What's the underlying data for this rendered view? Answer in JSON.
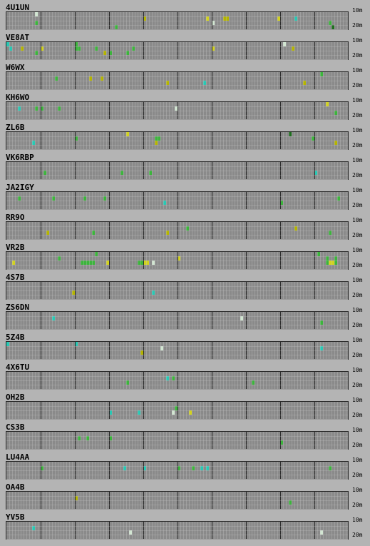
{
  "bands": {
    "top": "10m",
    "bottom": "20m"
  },
  "colors": {
    "background": "#b4b4b4",
    "cell_empty": "#8a8a8a",
    "grid_line": "#c8c8c8",
    "hour_divider": "#2a2a2a",
    "signal_colors": {
      "G": "#3cb43c",
      "D": "#1e6e1e",
      "Y": "#b4b400",
      "L": "#d2d21e",
      "C": "#28c8b4",
      "W": "#d2e6d2",
      "V": "#3cdc3c"
    }
  },
  "beacons": [
    {
      "name": "4U1UN",
      "rows": [
        "..........W.................................................................................................................",
        "................................................Y.....................L.....YY.................L.....C...................",
        "..........G.............................................................W........................................G......",
        "......................................G...........................................................................D......"
      ]
    },
    {
      "name": "VE8AT",
      "rows": [
        "C.......................G........................................................................W........................",
        ".C...Y......L...........GG.....G............G...........................L...........................Y.....................",
        "..........G.......................Y.G.....G................................................................................",
        "........................................................................................................................"
      ]
    },
    {
      "name": "W6WX",
      "rows": [
        "..............................................................................................................G...........",
        ".................G...........Y...Y.........................................................................................",
        "........................................................Y............C..................................Y................",
        "........................................................................................................................"
      ]
    },
    {
      "name": "KH6WO",
      "rows": [
        "................................................................................................................L.........",
        "....C.....G.G.....G........................................W...........................................................",
        "...................................................................................................................G......",
        "........................................................................................................................"
      ]
    },
    {
      "name": "ZL6B",
      "rows": [
        "..........................................L........................................................D....................",
        "........................G...........................GG.....................................................G.............",
        ".........C..........................................Y..............................................................Y.....",
        "........................................................................................................................"
      ]
    },
    {
      "name": "VK6RBP",
      "rows": [
        "........................................................................................................................",
        "........................................................................................................................",
        ".............G..........................G.........G.........................................................C..........",
        "........................................................................................................................"
      ]
    },
    {
      "name": "JA2IGY",
      "rows": [
        "........................................................................................................................",
        "....G...........G..........G......G.................................................................................G.....",
        ".......................................................C........................................G.........................",
        "........................................................................................................................"
      ]
    },
    {
      "name": "RR9O",
      "rows": [
        "..........................................................................................................................",
        "...............................................................G.....................................Y....................",
        "..............Y...............G.........................Y........................................................G........",
        "........................................................................................................................"
      ]
    },
    {
      "name": "VR2B",
      "rows": [
        "...............................G.............................................................................G........",
        "..................G.........................................L...................................................G..G...",
        "..L.......................GGGGG....L..........GGLL.W............................................................GLLG...",
        "........................................................................................................................"
      ]
    },
    {
      "name": "4S7B",
      "rows": [
        "........................................................................................................................",
        "..........................................................................................................................",
        ".......................Y...........................C.....................................................................",
        "........................................................................................................................"
      ]
    },
    {
      "name": "ZS6DN",
      "rows": [
        "..........................................................................................................................",
        "................C.................................................................W....................................",
        "..............................................................................................................G.........",
        "........................................................................................................................"
      ]
    },
    {
      "name": "5Z4B",
      "rows": [
        "C.......................C......................................................................................................",
        "......................................................W.......................................................C.........",
        "...............................................Y.........................................................................",
        "........................................................................................................................"
      ]
    },
    {
      "name": "4X6TU",
      "rows": [
        "........................................................................................................................",
        "........................................................C.G..............................................................",
        "..........................................G...........................................G..................................",
        "........................................................................................................................"
      ]
    },
    {
      "name": "OH2B",
      "rows": [
        "........................................................................................................................",
        "...........................................................G............................................................",
        "....................................C.........C...........W.....L.......................................................",
        "........................................................................................................................"
      ]
    },
    {
      "name": "CS3B",
      "rows": [
        "........................................................................................................................",
        ".........................G..G.......G.................................................................................",
        "................................................................................................G.....................",
        "........................................................................................................................"
      ]
    },
    {
      "name": "LU4AA",
      "rows": [
        "........................................................................................................................",
        "............G............................C......C...........G....G..C.C..........................................G......",
        "........................................................................................................................",
        "........................................................................................................................"
      ]
    },
    {
      "name": "OA4B",
      "rows": [
        "........................................................................................................................",
        "........................Y............................................................................................",
        "...................................................................................................G....................",
        "........................................................................................................................"
      ]
    },
    {
      "name": "YV5B",
      "rows": [
        "........................................................................................................................",
        ".........C..........................................................................................................",
        "...........................................W..................................................................W.........",
        "........................................................................................................................"
      ]
    }
  ]
}
